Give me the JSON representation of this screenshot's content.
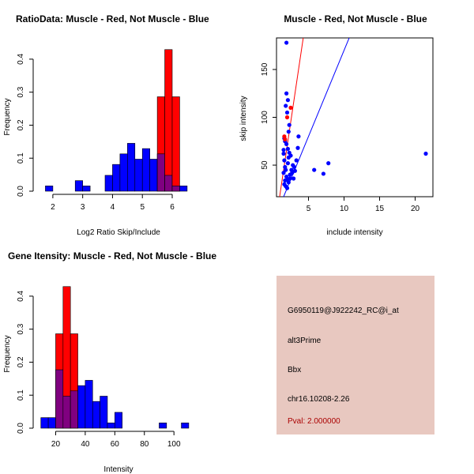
{
  "colors": {
    "muscle": "#ff0000",
    "not_muscle": "#0000ff",
    "overlap": "#800080",
    "panel_bg": "#e8c8c0",
    "pval_text": "#aa0000"
  },
  "chart_data": [
    {
      "id": "ratio",
      "type": "bar",
      "title": "RatioData: Muscle - Red, Not Muscle - Blue",
      "xlabel": "Log2 Ratio Skip/Include",
      "ylabel": "Frequency",
      "xlim": [
        1.5,
        6.9
      ],
      "ylim": [
        0,
        0.45
      ],
      "xticks": [
        2,
        3,
        4,
        5,
        6
      ],
      "yticks": [
        0.0,
        0.1,
        0.2,
        0.3,
        0.4
      ],
      "bin_width": 0.25,
      "bin_starts": [
        1.75,
        2.0,
        2.25,
        2.5,
        2.75,
        3.0,
        3.25,
        3.5,
        3.75,
        4.0,
        4.25,
        4.5,
        4.75,
        5.0,
        5.25,
        5.5,
        5.75,
        6.0,
        6.25
      ],
      "series": [
        {
          "name": "Not Muscle",
          "color": "#0000ff",
          "values": [
            0.016,
            0,
            0,
            0,
            0.032,
            0.016,
            0,
            0,
            0.048,
            0.081,
            0.113,
            0.145,
            0.097,
            0.129,
            0.097,
            0.113,
            0.048,
            0.016,
            0.016
          ]
        },
        {
          "name": "Muscle",
          "color": "#ff0000",
          "values": [
            0,
            0,
            0,
            0,
            0,
            0,
            0,
            0,
            0,
            0,
            0,
            0,
            0,
            0,
            0,
            0.286,
            0.429,
            0.286,
            0
          ]
        }
      ]
    },
    {
      "id": "scatter",
      "type": "scatter",
      "title": "Muscle - Red, Not Muscle - Blue",
      "xlabel": "include intensity",
      "ylabel": "skip intensity",
      "xlim": [
        0.5,
        22.5
      ],
      "ylim": [
        17,
        183
      ],
      "xticks": [
        5,
        10,
        15,
        20
      ],
      "yticks": [
        50,
        100,
        150
      ],
      "series": [
        {
          "name": "Not Muscle",
          "color": "#0000ff",
          "points": [
            [
              1.5,
              62
            ],
            [
              1.6,
              55
            ],
            [
              1.7,
              48
            ],
            [
              1.8,
              45
            ],
            [
              1.9,
              38
            ],
            [
              2.0,
              35
            ],
            [
              2.1,
              52
            ],
            [
              2.2,
              58
            ],
            [
              2.3,
              63
            ],
            [
              1.5,
              42
            ],
            [
              1.6,
              30
            ],
            [
              1.8,
              28
            ],
            [
              2.0,
              26
            ],
            [
              2.4,
              40
            ],
            [
              2.6,
              45
            ],
            [
              2.8,
              50
            ],
            [
              3.0,
              48
            ],
            [
              3.3,
              55
            ],
            [
              3.5,
              68
            ],
            [
              1.9,
              72
            ],
            [
              2.1,
              67
            ],
            [
              1.7,
              75
            ],
            [
              1.6,
              78
            ],
            [
              2.2,
              85
            ],
            [
              2.3,
              92
            ],
            [
              2.0,
              105
            ],
            [
              1.8,
              112
            ],
            [
              2.1,
              118
            ],
            [
              1.9,
              125
            ],
            [
              1.9,
              178
            ],
            [
              2.4,
              36
            ],
            [
              2.7,
              42
            ],
            [
              2.5,
              60
            ],
            [
              3.1,
              44
            ],
            [
              3.6,
              80
            ],
            [
              5.8,
              45
            ],
            [
              7.1,
              41
            ],
            [
              7.8,
              52
            ],
            [
              21.5,
              62
            ],
            [
              1.5,
              66
            ],
            [
              1.7,
              34
            ],
            [
              2.2,
              32
            ],
            [
              2.9,
              36
            ]
          ]
        },
        {
          "name": "Muscle",
          "color": "#ff0000",
          "points": [
            [
              1.6,
              80
            ],
            [
              1.7,
              77
            ],
            [
              2.0,
              100
            ],
            [
              2.5,
              110
            ]
          ]
        }
      ],
      "lines": [
        {
          "name": "red-line",
          "color": "#ff0000",
          "slope": 50,
          "intercept": -30
        },
        {
          "name": "blue-line",
          "color": "#0000ff",
          "slope": 18,
          "intercept": -10
        }
      ]
    },
    {
      "id": "intensity",
      "type": "bar",
      "title": "Gene Itensity: Muscle - Red, Not Muscle - Blue",
      "xlabel": "Intensity",
      "ylabel": "Frequency",
      "xlim": [
        8,
        117
      ],
      "ylim": [
        0,
        0.45
      ],
      "xticks": [
        20,
        40,
        60,
        80,
        100
      ],
      "yticks": [
        0.0,
        0.1,
        0.2,
        0.3,
        0.4
      ],
      "bin_width": 5,
      "bin_starts": [
        10,
        15,
        20,
        25,
        30,
        35,
        40,
        45,
        50,
        55,
        60,
        65,
        70,
        75,
        80,
        85,
        90,
        95,
        100,
        105
      ],
      "series": [
        {
          "name": "Not Muscle",
          "color": "#0000ff",
          "values": [
            0.032,
            0.032,
            0.177,
            0.097,
            0.113,
            0.129,
            0.145,
            0.081,
            0.097,
            0.016,
            0.048,
            0,
            0,
            0,
            0,
            0,
            0.016,
            0,
            0,
            0.016
          ]
        },
        {
          "name": "Muscle",
          "color": "#ff0000",
          "values": [
            0,
            0,
            0.286,
            0.429,
            0.286,
            0,
            0,
            0,
            0,
            0,
            0,
            0,
            0,
            0,
            0,
            0,
            0,
            0,
            0,
            0
          ]
        }
      ]
    }
  ],
  "info_panel": {
    "probe": "G6950119@J922242_RC@i_at",
    "event": "alt3Prime",
    "gene": "Bbx",
    "location": "chr16.10208-2.26",
    "pval": "Pval: 2.000000"
  }
}
